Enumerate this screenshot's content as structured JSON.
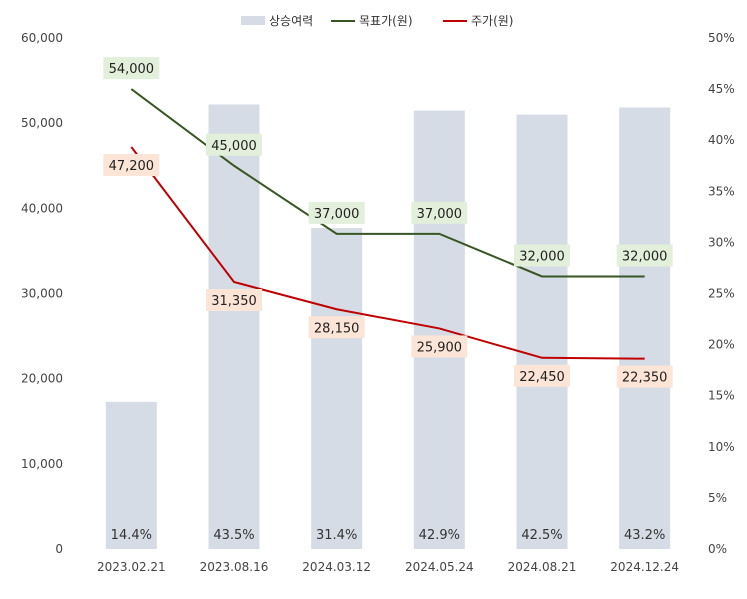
{
  "chart_data": {
    "type": "bar",
    "categories": [
      "2023.02.21",
      "2023.08.16",
      "2024.03.12",
      "2024.05.24",
      "2024.08.21",
      "2024.12.24"
    ],
    "y_left": {
      "ylim": [
        0,
        60000
      ],
      "ticks": [
        "0",
        "10,000",
        "20,000",
        "30,000",
        "40,000",
        "50,000",
        "60,000"
      ]
    },
    "y_right": {
      "ylim": [
        0,
        50
      ],
      "ticks": [
        "0%",
        "5%",
        "10%",
        "15%",
        "20%",
        "25%",
        "30%",
        "35%",
        "40%",
        "45%",
        "50%"
      ]
    },
    "series": [
      {
        "name": "상승여력",
        "kind": "bar",
        "axis": "right",
        "color": "#d6dce5",
        "values": [
          14.4,
          43.5,
          31.4,
          42.9,
          42.5,
          43.2
        ],
        "labels": [
          "14.4%",
          "43.5%",
          "31.4%",
          "42.9%",
          "42.5%",
          "43.2%"
        ]
      },
      {
        "name": "목표가(원)",
        "kind": "line",
        "axis": "left",
        "color": "#375623",
        "label_bg": "#e2efda",
        "values": [
          54000,
          45000,
          37000,
          37000,
          32000,
          32000
        ],
        "labels": [
          "54,000",
          "45,000",
          "37,000",
          "37,000",
          "32,000",
          "32,000"
        ]
      },
      {
        "name": "주가(원)",
        "kind": "line",
        "axis": "left",
        "color": "#c00000",
        "label_bg": "#fce4d6",
        "values": [
          47200,
          31350,
          28150,
          25900,
          22450,
          22350
        ],
        "labels": [
          "47,200",
          "31,350",
          "28,150",
          "25,900",
          "22,450",
          "22,350"
        ]
      }
    ],
    "legend": "top-center",
    "grid": false
  }
}
